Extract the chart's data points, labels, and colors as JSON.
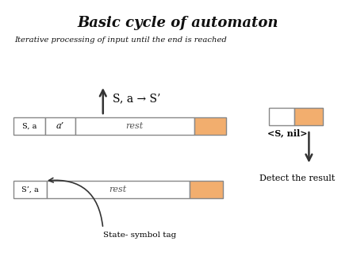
{
  "title": "Basic cycle of automaton",
  "subtitle": "Iterative processing of input until the end is reached",
  "background_color": "#ffffff",
  "orange_color": "#F2AE6E",
  "box_edge_color": "#888888",
  "sa_label": "S, a",
  "aprime_label": "a’",
  "rest_label": "rest",
  "sprime_a_label": "S’, a",
  "transition_label": "S, a → S’",
  "state_symbol_tag": "State- symbol tag",
  "detect_result": "Detect the result",
  "snil_label": "<S, nil>"
}
